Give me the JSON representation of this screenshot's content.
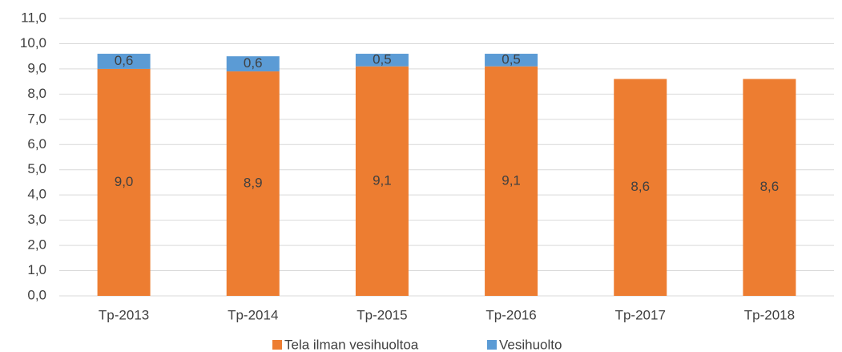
{
  "chart_data": {
    "type": "bar",
    "stacked": true,
    "categories": [
      "Tp-2013",
      "Tp-2014",
      "Tp-2015",
      "Tp-2016",
      "Tp-2017",
      "Tp-2018"
    ],
    "series": [
      {
        "name": "Tela ilman vesihuoltoa",
        "color": "#ed7d31",
        "values": [
          9.0,
          8.9,
          9.1,
          9.1,
          8.6,
          8.6
        ],
        "value_labels": [
          "9,0",
          "8,9",
          "9,1",
          "9,1",
          "8,6",
          "8,6"
        ]
      },
      {
        "name": "Vesihuolto",
        "color": "#5b9bd5",
        "values": [
          0.6,
          0.6,
          0.5,
          0.5,
          null,
          null
        ],
        "value_labels": [
          "0,6",
          "0,6",
          "0,5",
          "0,5",
          null,
          null
        ]
      }
    ],
    "ylim": [
      0,
      11
    ],
    "yticks": [
      {
        "value": 0,
        "label": "0,0"
      },
      {
        "value": 1,
        "label": "1,0"
      },
      {
        "value": 2,
        "label": "2,0"
      },
      {
        "value": 3,
        "label": "3,0"
      },
      {
        "value": 4,
        "label": "4,0"
      },
      {
        "value": 5,
        "label": "5,0"
      },
      {
        "value": 6,
        "label": "6,0"
      },
      {
        "value": 7,
        "label": "7,0"
      },
      {
        "value": 8,
        "label": "8,0"
      },
      {
        "value": 9,
        "label": "9,0"
      },
      {
        "value": 10,
        "label": "10,0"
      },
      {
        "value": 11,
        "label": "11,0"
      }
    ],
    "grid": true,
    "legend": "bottom"
  }
}
